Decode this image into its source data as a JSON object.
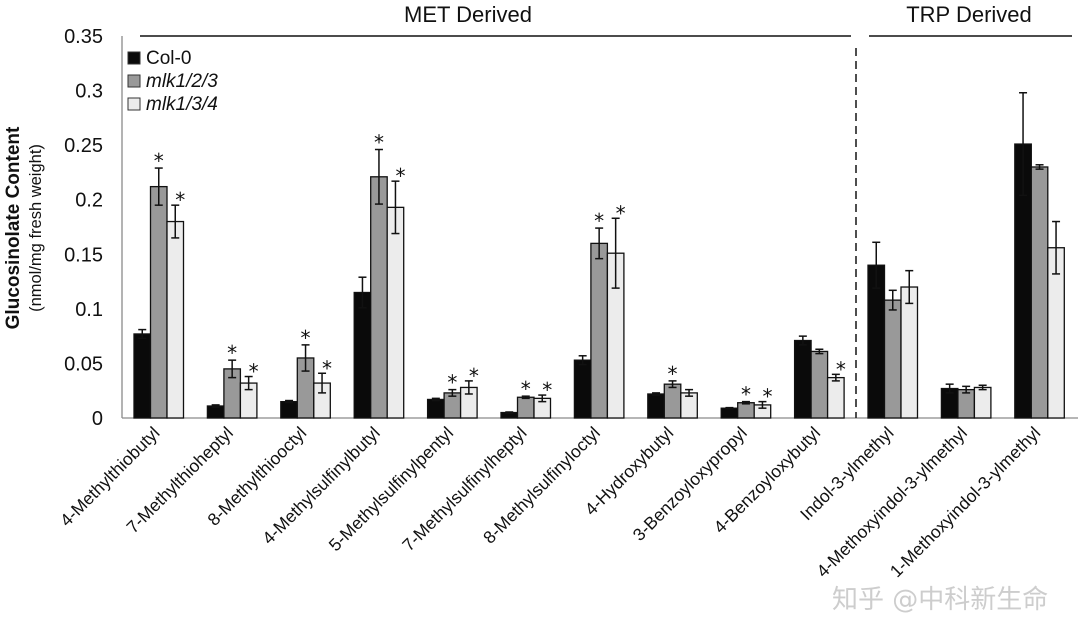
{
  "chart_data": {
    "type": "bar",
    "title": "",
    "xlabel": "",
    "ylabel": "Glucosinolate Content",
    "ylabel_sub": "(nmol/mg  fresh weight)",
    "ylim": [
      0,
      0.35
    ],
    "yticks": [
      0,
      0.05,
      0.1,
      0.15,
      0.2,
      0.25,
      0.3,
      0.35
    ],
    "ytick_labels": [
      "0",
      "0.05",
      "0.1",
      "0.15",
      "0.2",
      "0.25",
      "0.3",
      "0.35"
    ],
    "grid": false,
    "legend_position": "top-left",
    "sections": [
      {
        "label": "MET Derived",
        "categories_from": 0,
        "categories_to": 9
      },
      {
        "label": "TRP Derived",
        "categories_from": 10,
        "categories_to": 12
      }
    ],
    "categories": [
      "4-Methylthiobutyl",
      "7-Methylthioheptyl",
      "8-Methylthiooctyl",
      "4-Methylsulfinylbutyl",
      "5-Methylsulfinylpentyl",
      "7-Methylsulfinylheptyl",
      "8-Methylsulfinyloctyl",
      "4-Hydroxybutyl",
      "3-Benzoyloxypropyl",
      "4-Benzoyloxybutyl",
      "Indol-3-ylmethyl",
      "4-Methoxyindol-3-ylmethyl",
      "1-Methoxyindol-3-ylmethyl"
    ],
    "series": [
      {
        "name": "Col-0",
        "italic": false,
        "color": "#0a0a0a",
        "values": [
          0.077,
          0.011,
          0.015,
          0.115,
          0.017,
          0.005,
          0.053,
          0.022,
          0.009,
          0.071,
          0.14,
          0.027,
          0.251
        ],
        "errors": [
          0.004,
          0.001,
          0.001,
          0.014,
          0.001,
          0.0005,
          0.004,
          0.001,
          0.0005,
          0.004,
          0.021,
          0.004,
          0.047
        ],
        "significant": [
          false,
          false,
          false,
          false,
          false,
          false,
          false,
          false,
          false,
          false,
          false,
          false,
          false
        ]
      },
      {
        "name": "mlk1/2/3",
        "italic": true,
        "color": "#999999",
        "values": [
          0.212,
          0.045,
          0.055,
          0.221,
          0.023,
          0.019,
          0.16,
          0.031,
          0.014,
          0.061,
          0.108,
          0.026,
          0.23
        ],
        "errors": [
          0.017,
          0.008,
          0.012,
          0.025,
          0.003,
          0.001,
          0.014,
          0.003,
          0.001,
          0.002,
          0.009,
          0.003,
          0.002
        ],
        "significant": [
          true,
          true,
          true,
          true,
          true,
          true,
          true,
          true,
          true,
          false,
          false,
          false,
          false
        ]
      },
      {
        "name": "mlk1/3/4",
        "italic": true,
        "color": "#ececec",
        "values": [
          0.18,
          0.032,
          0.032,
          0.193,
          0.028,
          0.018,
          0.151,
          0.023,
          0.012,
          0.037,
          0.12,
          0.028,
          0.156
        ],
        "errors": [
          0.015,
          0.006,
          0.009,
          0.024,
          0.006,
          0.003,
          0.032,
          0.003,
          0.003,
          0.003,
          0.015,
          0.002,
          0.024
        ],
        "significant": [
          true,
          true,
          true,
          true,
          true,
          true,
          true,
          false,
          true,
          true,
          false,
          false,
          false
        ]
      }
    ],
    "significance_marker": "*"
  },
  "watermark": "知乎 @中科新生命"
}
